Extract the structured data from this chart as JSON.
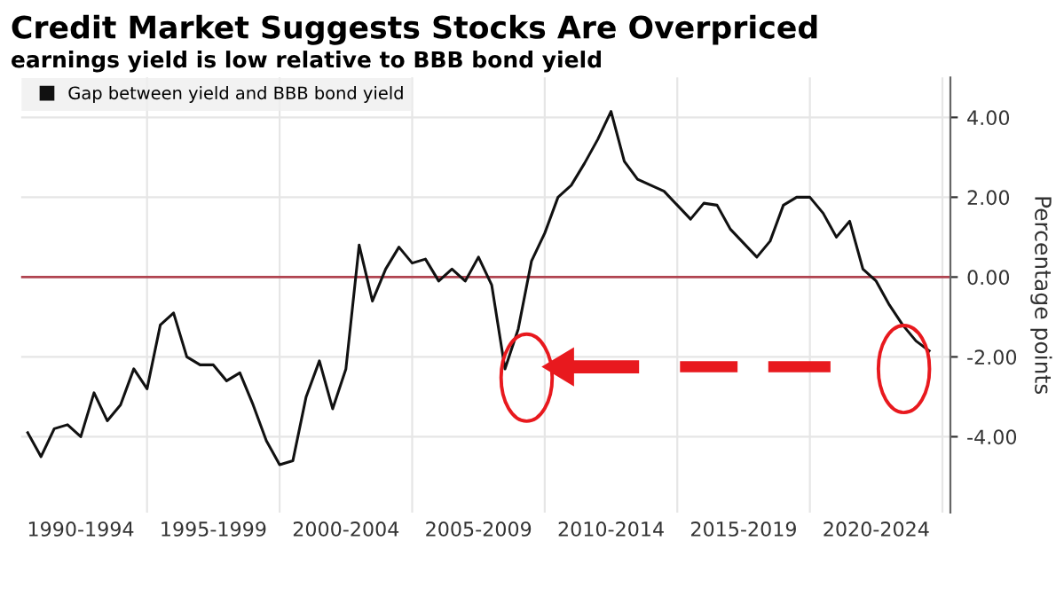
{
  "chart_data": {
    "type": "line",
    "title": "Credit Market Suggests Stocks Are Overpriced",
    "subtitle": "earnings yield is low relative to BBB bond yield",
    "ylabel": "Percentage points",
    "categories": [
      null,
      null,
      null,
      null,
      "1990-1994",
      null,
      null,
      null,
      null,
      null,
      null,
      null,
      null,
      null,
      "1995-1999",
      null,
      null,
      null,
      null,
      null,
      null,
      null,
      null,
      null,
      "2000-2004",
      null,
      null,
      null,
      null,
      null,
      null,
      null,
      null,
      null,
      "2005-2009",
      null,
      null,
      null,
      null,
      null,
      null,
      null,
      null,
      null,
      "2010-2014",
      null,
      null,
      null,
      null,
      null,
      null,
      null,
      null,
      null,
      "2015-2019",
      null,
      null,
      null,
      null,
      null,
      null,
      null,
      null,
      null,
      "2020-2024",
      null,
      null,
      null,
      null
    ],
    "ylim": [
      -5.9,
      5
    ],
    "yticks": [
      {
        "value": 4,
        "label": "4.00"
      },
      {
        "value": 2,
        "label": "2.00"
      },
      {
        "value": 0,
        "label": "0.00"
      },
      {
        "value": -2,
        "label": "-2.00"
      },
      {
        "value": -4,
        "label": "-4.00"
      }
    ],
    "grid": true,
    "legend": "top left",
    "ref_lines": [
      {
        "axis": "y",
        "value": 0,
        "label": null,
        "color": "#b04450"
      }
    ],
    "series": [
      {
        "name": "Gap between yield and BBB bond yield",
        "color": "#111111",
        "values": [
          -3.9,
          -4.5,
          -3.8,
          -3.7,
          -4.0,
          -2.9,
          -3.6,
          -3.2,
          -2.3,
          -2.8,
          -1.2,
          -0.9,
          -2.0,
          -2.2,
          -2.2,
          -2.6,
          -2.4,
          -3.2,
          -4.1,
          -4.7,
          -4.6,
          -3.0,
          -2.1,
          -3.3,
          -2.3,
          0.8,
          -0.6,
          0.2,
          0.75,
          0.35,
          0.45,
          -0.1,
          0.2,
          -0.1,
          0.5,
          -0.2,
          -2.3,
          -1.3,
          0.4,
          1.1,
          2.0,
          2.3,
          2.85,
          3.45,
          4.15,
          2.9,
          2.45,
          2.3,
          2.15,
          1.8,
          1.45,
          1.85,
          1.8,
          1.2,
          0.85,
          0.5,
          0.9,
          1.8,
          2.0,
          2.0,
          1.6,
          1.0,
          1.4,
          0.2,
          -0.1,
          -0.7,
          -1.2,
          -1.6,
          -1.85
        ]
      }
    ]
  }
}
